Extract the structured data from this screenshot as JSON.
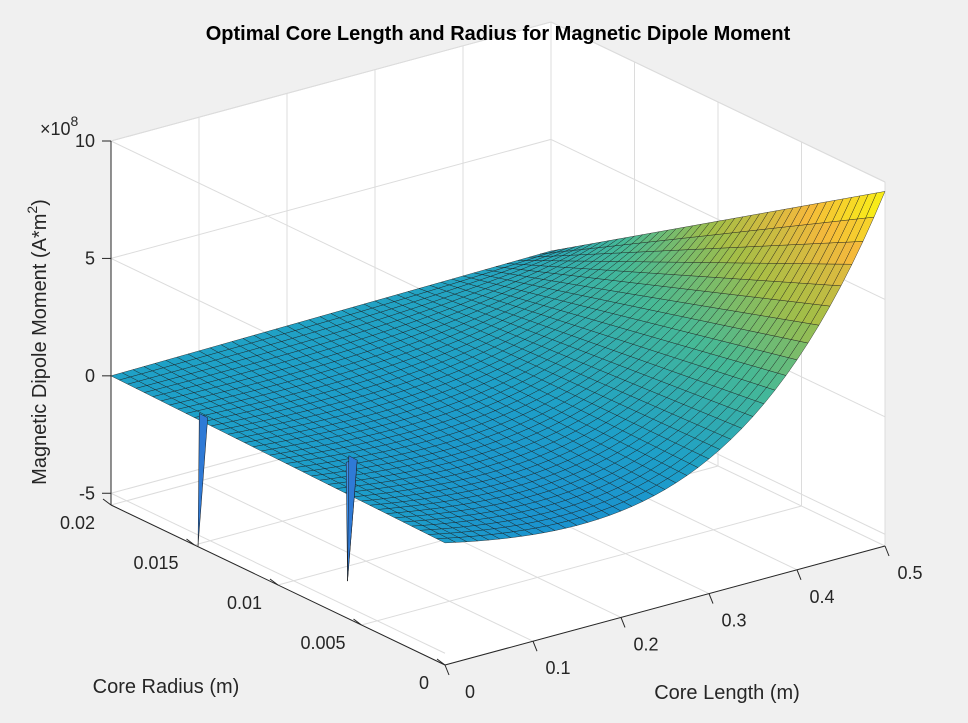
{
  "chart_data": {
    "type": "surface",
    "title": "Optimal Core Length and Radius for Magnetic Dipole Moment",
    "xlabel": "Core Length (m)",
    "ylabel": "Core Radius (m)",
    "zlabel_main": "Magnetic Dipole Moment (A*m",
    "zlabel_sup": "2",
    "zlabel_end": ")",
    "z_exponent_base": "×10",
    "z_exponent_power": "8",
    "xlim": [
      0,
      0.5
    ],
    "ylim": [
      0,
      0.02
    ],
    "zlim": [
      -5.5,
      10
    ],
    "x_ticks": [
      0,
      0.1,
      0.2,
      0.3,
      0.4,
      0.5
    ],
    "x_tick_labels": [
      "0",
      "0.1",
      "0.2",
      "0.3",
      "0.4",
      "0.5"
    ],
    "y_ticks": [
      0,
      0.005,
      0.01,
      0.015,
      0.02
    ],
    "y_tick_labels": [
      "0",
      "0.005",
      "0.01",
      "0.015",
      "0.02"
    ],
    "z_ticks": [
      -5,
      0,
      5,
      10
    ],
    "z_tick_labels": [
      "-5",
      "0",
      "5",
      "10"
    ],
    "grid": true,
    "colormap": "parula",
    "surface": {
      "x": [
        0,
        0.5
      ],
      "y": [
        0,
        0.02
      ],
      "corner_values_e8": {
        "x0_y0": -0.3,
        "x0_y1": 0,
        "x1_y0": 9.6,
        "x1_y1": 0
      },
      "spikes": [
        {
          "x": 0.004,
          "y": 0.015,
          "z": -5.6
        },
        {
          "x": 0.06,
          "y": 0.009,
          "z": -5.6
        }
      ]
    }
  }
}
